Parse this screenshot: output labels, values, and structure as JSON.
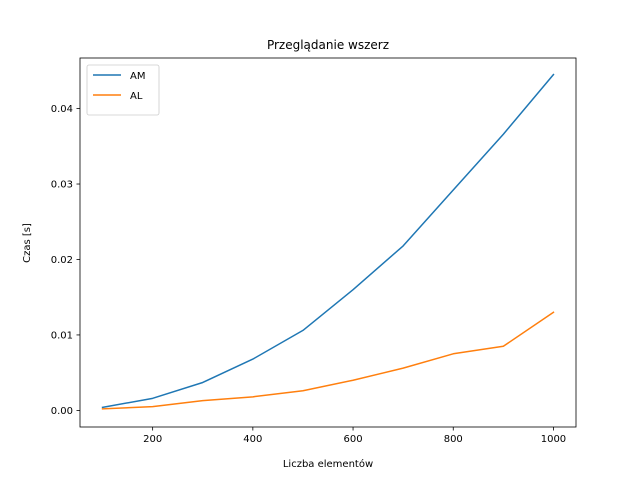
{
  "chart_data": {
    "type": "line",
    "title": "Przeglądanie wszerz",
    "xlabel": "Liczba elementów",
    "ylabel": "Czas [s]",
    "x": [
      100,
      200,
      300,
      400,
      500,
      600,
      700,
      800,
      900,
      1000
    ],
    "series": [
      {
        "name": "AM",
        "color": "#1f77b4",
        "values": [
          0.0004,
          0.0016,
          0.0037,
          0.0068,
          0.0106,
          0.016,
          0.0218,
          0.0292,
          0.0366,
          0.0445
        ]
      },
      {
        "name": "AL",
        "color": "#ff7f0e",
        "values": [
          0.0002,
          0.0005,
          0.0013,
          0.0018,
          0.0026,
          0.004,
          0.0056,
          0.0075,
          0.0085,
          0.013
        ]
      }
    ],
    "xlim": [
      55,
      1045
    ],
    "ylim": [
      -0.0022,
      0.0467
    ],
    "xticks": [
      200,
      400,
      600,
      800,
      1000
    ],
    "xtick_labels": [
      "200",
      "400",
      "600",
      "800",
      "1000"
    ],
    "yticks": [
      0.0,
      0.01,
      0.02,
      0.03,
      0.04
    ],
    "ytick_labels": [
      "0.00",
      "0.01",
      "0.02",
      "0.03",
      "0.04"
    ],
    "grid": false,
    "legend": "top-left"
  }
}
